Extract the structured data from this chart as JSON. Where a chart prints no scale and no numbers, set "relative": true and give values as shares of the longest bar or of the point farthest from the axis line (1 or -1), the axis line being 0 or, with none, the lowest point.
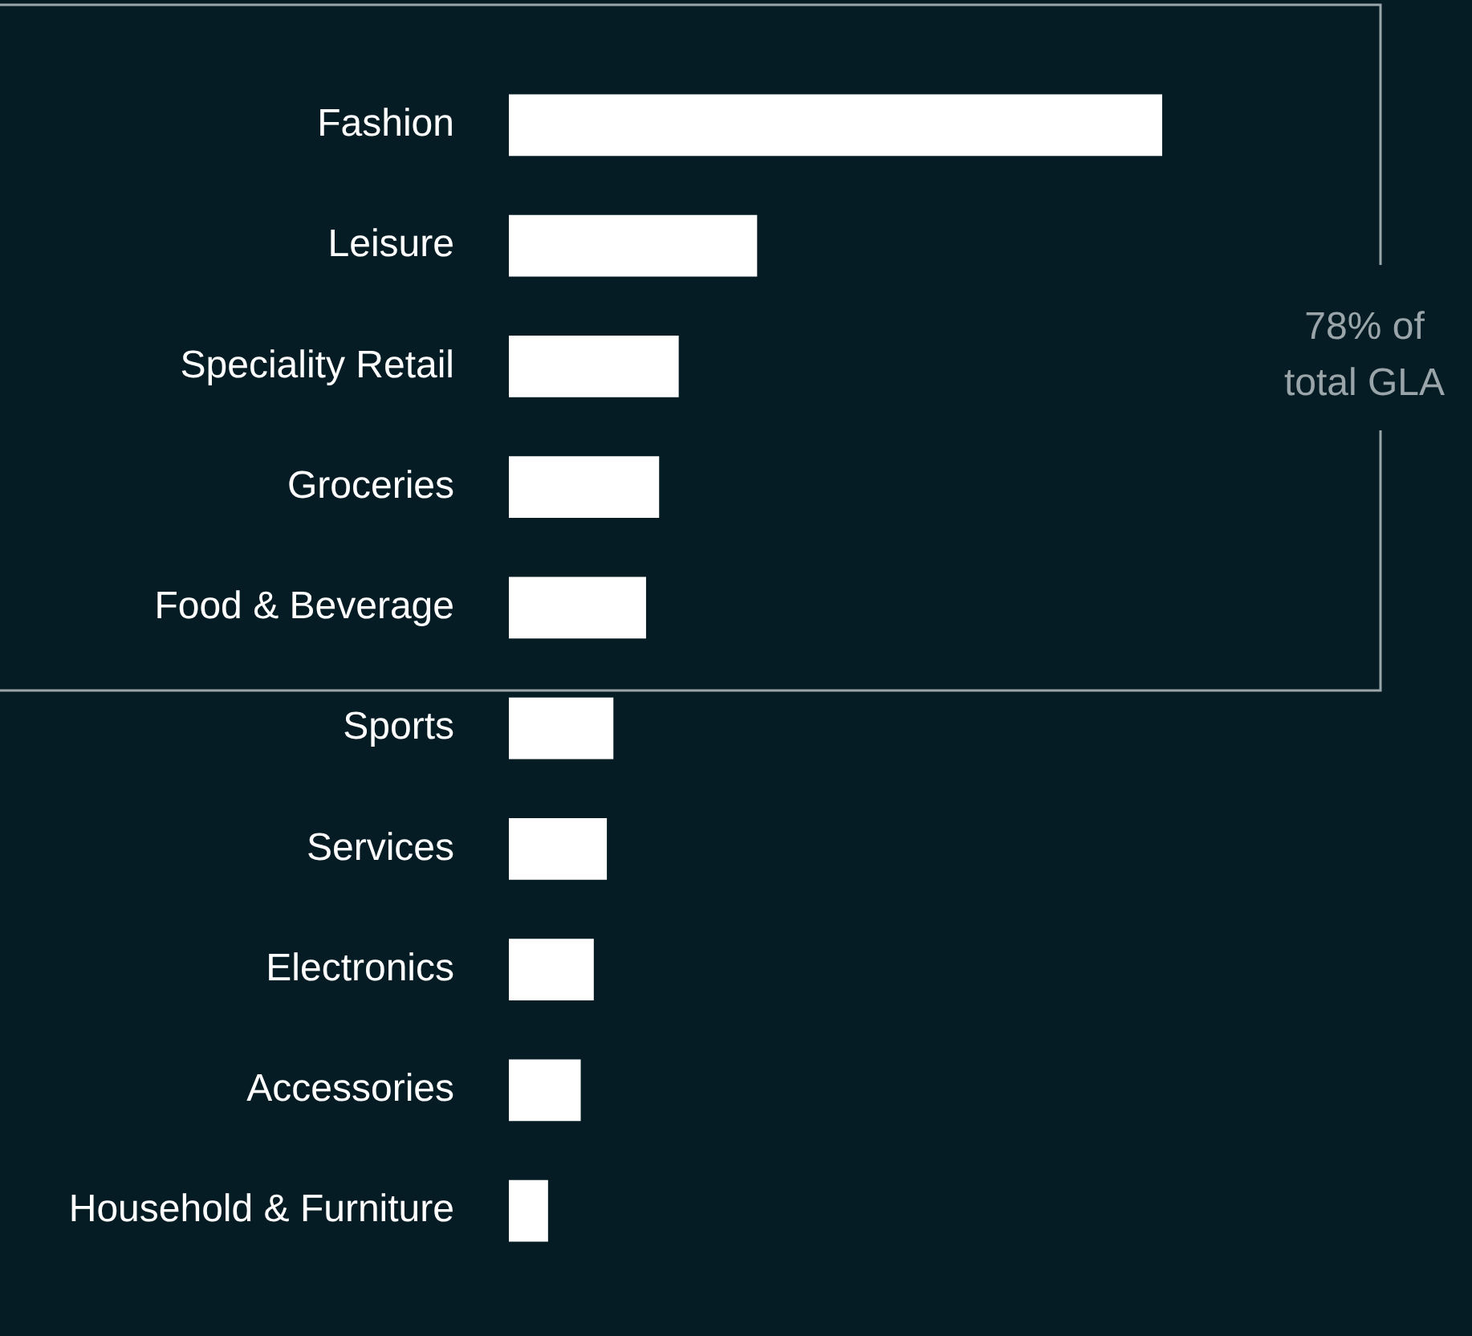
{
  "chart_data": {
    "type": "bar",
    "orientation": "horizontal",
    "relative": true,
    "categories": [
      "Fashion",
      "Leisure",
      "Speciality Retail",
      "Groceries",
      "Food & Beverage",
      "Sports",
      "Services",
      "Electronics",
      "Accessories",
      "Household & Furniture"
    ],
    "values": [
      1,
      0.38,
      0.26,
      0.23,
      0.21,
      0.16,
      0.15,
      0.13,
      0.11,
      0.06
    ],
    "color": "#ffffff",
    "legend": false,
    "annotations": [
      "78% of total GLA"
    ]
  }
}
